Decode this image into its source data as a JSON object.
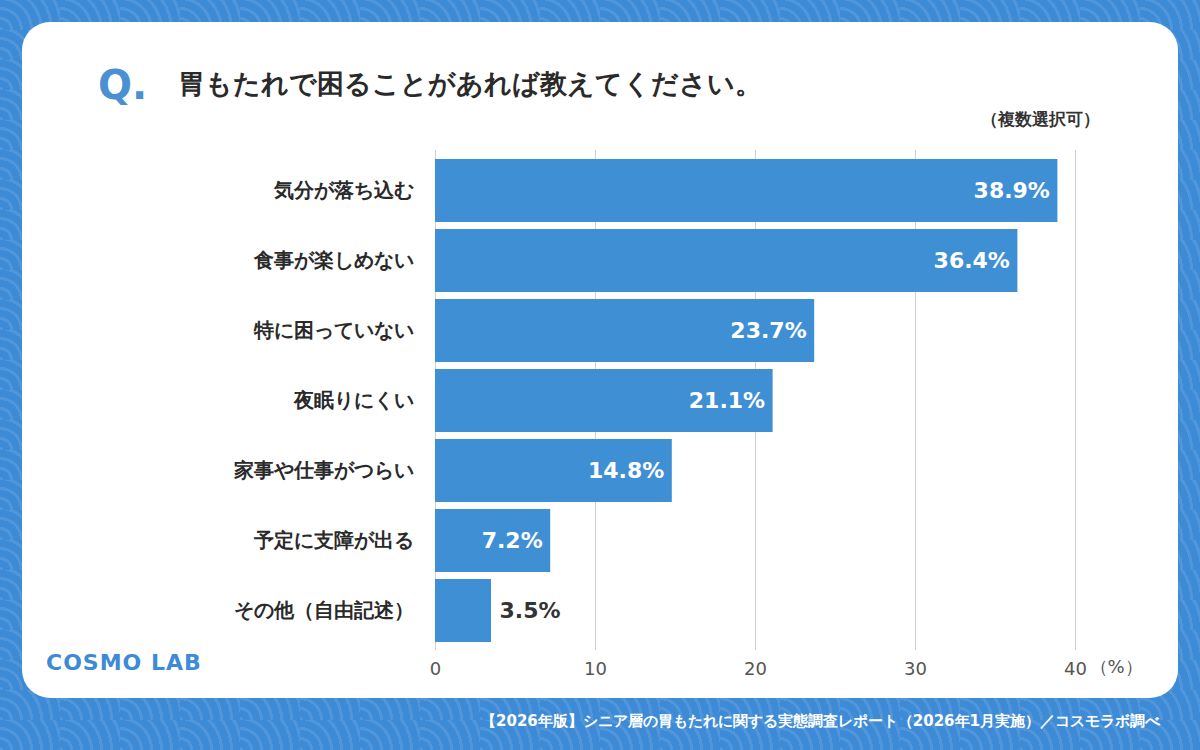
{
  "chart_data": {
    "type": "bar",
    "orientation": "horizontal",
    "title": "胃もたれで困ることがあれば教えてください。",
    "annotations": [
      "Q.",
      "（複数選択可）",
      "COSMO LAB"
    ],
    "caption": "【2026年版】シニア層の胃もたれに関する実態調査レポート（2026年1月実施）／コスモラボ調べ",
    "x_label": "（%）",
    "categories": [
      "気分が落ち込む",
      "食事が楽しめない",
      "特に困っていない",
      "夜眠りにくい",
      "家事や仕事がつらい",
      "予定に支障が出る",
      "その他（自由記述）"
    ],
    "values": [
      38.9,
      36.4,
      23.7,
      21.1,
      14.8,
      7.2,
      3.5
    ],
    "value_labels": [
      "38.9%",
      "36.4%",
      "23.7%",
      "21.1%",
      "14.8%",
      "7.2%",
      "3.5%"
    ],
    "color": "#3f8fd4",
    "xlim": [
      0,
      40
    ],
    "xticks": [
      0,
      10,
      20,
      30,
      40
    ],
    "grid": true,
    "data_labels": true
  }
}
